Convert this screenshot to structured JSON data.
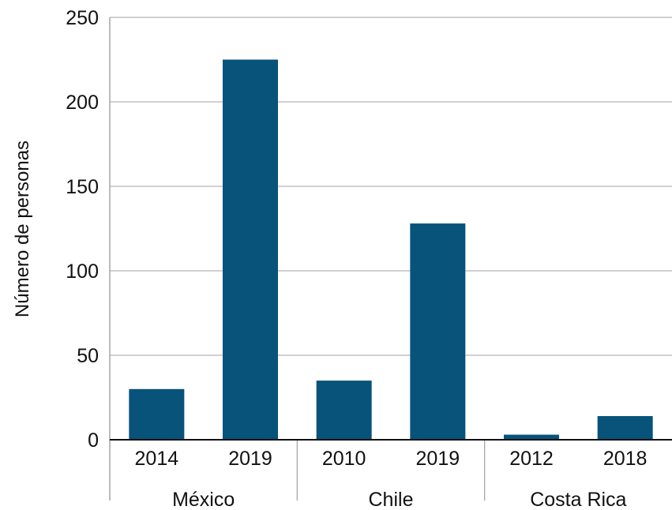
{
  "chart_data": {
    "type": "bar",
    "title": "",
    "ylabel": "Número de personas",
    "xlabel": "",
    "ylim": [
      0,
      250
    ],
    "yticks": [
      0,
      50,
      100,
      150,
      200,
      250
    ],
    "grid": true,
    "legend": "none",
    "bar_color": "#07537a",
    "groups": [
      {
        "name": "México",
        "categories": [
          "2014",
          "2019"
        ],
        "values": [
          30,
          225
        ]
      },
      {
        "name": "Chile",
        "categories": [
          "2010",
          "2019"
        ],
        "values": [
          35,
          128
        ]
      },
      {
        "name": "Costa Rica",
        "categories": [
          "2012",
          "2018"
        ],
        "values": [
          3,
          14
        ]
      }
    ]
  }
}
